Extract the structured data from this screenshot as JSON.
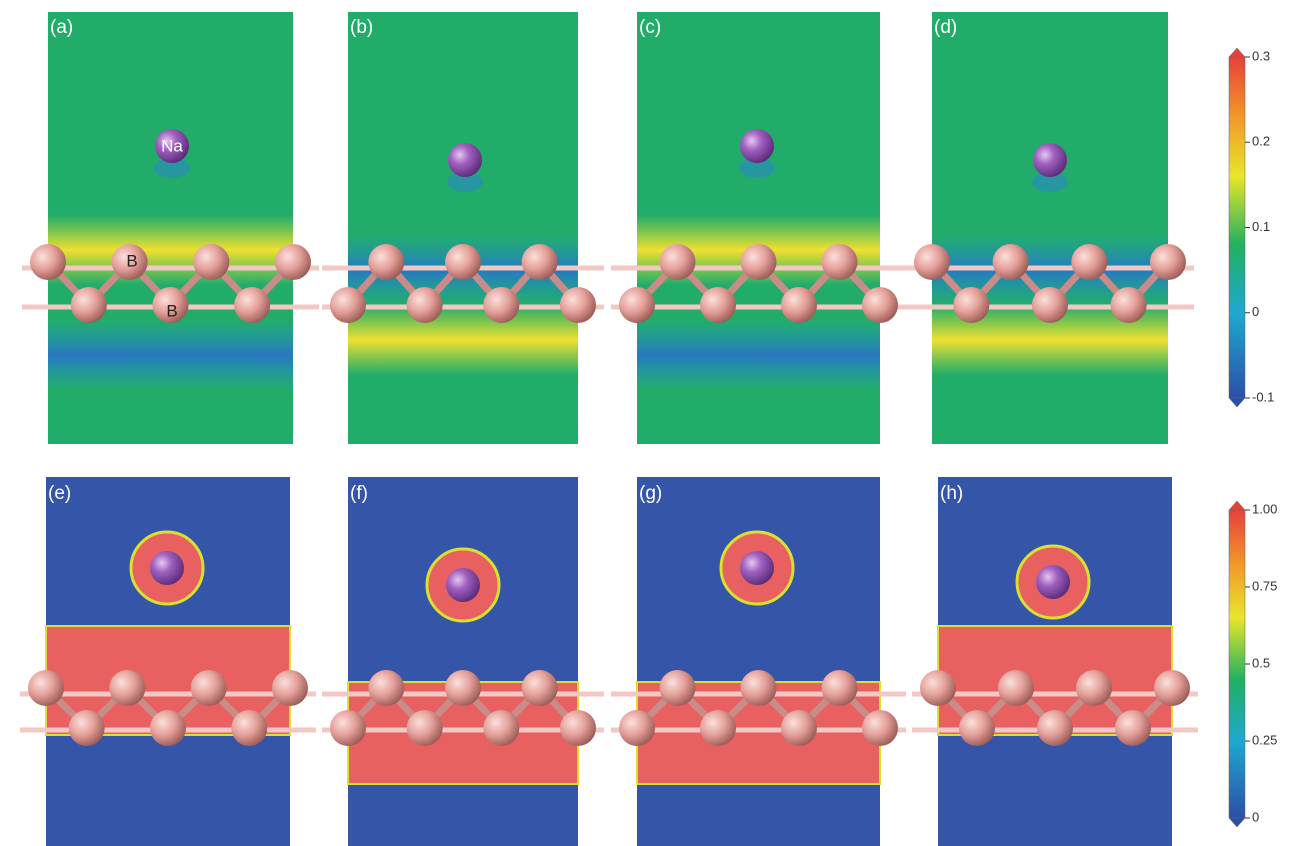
{
  "panels": [
    {
      "label": "(a)"
    },
    {
      "label": "(b)"
    },
    {
      "label": "(c)"
    },
    {
      "label": "(d)"
    },
    {
      "label": "(e)"
    },
    {
      "label": "(f)"
    },
    {
      "label": "(g)"
    },
    {
      "label": "(h)"
    }
  ],
  "annotations": {
    "na": "Na",
    "b_upper": "B",
    "b_lower": "B"
  },
  "colorbars": [
    {
      "lim": [
        -0.1,
        0.3
      ],
      "ticks": [
        0.3,
        0.2,
        0.1,
        0,
        -0.1
      ]
    },
    {
      "lim": [
        0,
        1
      ],
      "ticks": [
        {
          "value": 1,
          "label": "1.00"
        },
        0.75,
        0.5,
        0.25,
        0
      ]
    }
  ]
}
